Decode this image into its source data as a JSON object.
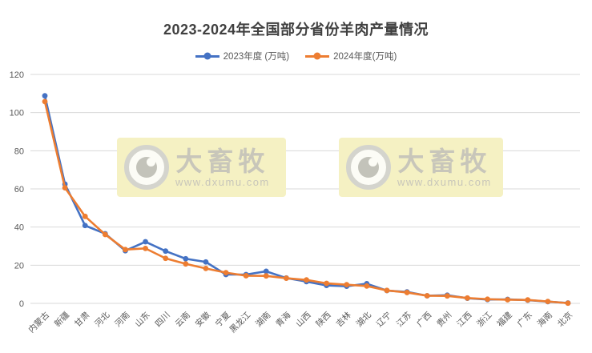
{
  "chart_data": {
    "type": "line",
    "title": "2023-2024年全国部分省份羊肉产量情况",
    "categories": [
      "内蒙古",
      "新疆",
      "甘肃",
      "河北",
      "河南",
      "山东",
      "四川",
      "云南",
      "安徽",
      "宁夏",
      "黑龙江",
      "湖南",
      "青海",
      "山西",
      "陕西",
      "吉林",
      "湖北",
      "辽宁",
      "江苏",
      "广西",
      "贵州",
      "江西",
      "浙江",
      "福建",
      "广东",
      "海南",
      "北京"
    ],
    "series": [
      {
        "name": "2023年度 (万吨)",
        "color": "#4472C4",
        "values": [
          108.8,
          62.5,
          40.8,
          36.5,
          27.6,
          32.3,
          27.4,
          23.4,
          21.7,
          15.1,
          15.1,
          16.8,
          13.3,
          11.4,
          9.4,
          9.0,
          10.3,
          6.7,
          6.0,
          4.0,
          4.3,
          2.7,
          2.0,
          2.1,
          1.7,
          0.9,
          0.2
        ]
      },
      {
        "name": "2024年度(万吨)",
        "color": "#ED7D31",
        "values": [
          105.8,
          60.6,
          45.6,
          36.1,
          28.2,
          28.8,
          23.6,
          20.7,
          18.3,
          16.1,
          14.5,
          14.4,
          13.2,
          12.3,
          10.5,
          9.8,
          9.1,
          6.8,
          5.7,
          4.0,
          3.9,
          2.8,
          2.2,
          1.9,
          1.8,
          1.0,
          0.1
        ]
      }
    ],
    "xlabel": "",
    "ylabel": "",
    "ylim": [
      0,
      120
    ],
    "yticks": [
      0,
      20,
      40,
      60,
      80,
      100,
      120
    ],
    "grid": true,
    "legend_position": "top",
    "axis_color": "#595959",
    "grid_color": "#D9D9D9"
  },
  "watermark": {
    "icon": "eye-icon",
    "brand": "大畜牧",
    "url": "www.dxumu.com",
    "background": "#F5F1C3",
    "text_color": "#C8C6BA"
  }
}
